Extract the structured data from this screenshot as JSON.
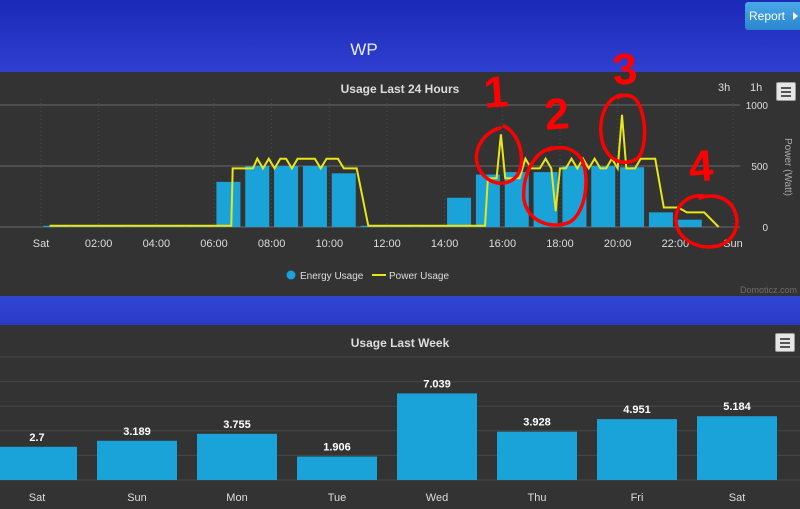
{
  "header": {
    "title": "WP",
    "report_label": "Report"
  },
  "chart_data": [
    {
      "type": "bar",
      "title": "Usage Last 24 Hours",
      "ylabel": "Power (Watt)",
      "ylim": [
        0,
        1000
      ],
      "y_ticks": [
        "0",
        "500",
        "1000"
      ],
      "x_ticks": [
        "Sat",
        "02:00",
        "04:00",
        "06:00",
        "08:00",
        "10:00",
        "12:00",
        "14:00",
        "16:00",
        "18:00",
        "20:00",
        "22:00",
        "Sun"
      ],
      "x_range_hours": [
        0,
        24
      ],
      "zoom_buttons": [
        "3h",
        "1h"
      ],
      "credit": "Domoticz.com",
      "legend_position": "bottom",
      "grid": true,
      "series": [
        {
          "name": "Energy Usage",
          "type": "bar",
          "color": "#1aa3d9",
          "points": [
            {
              "hour": 0.5,
              "value": 10
            },
            {
              "hour": 1.5,
              "value": 10
            },
            {
              "hour": 2.5,
              "value": 10
            },
            {
              "hour": 3.5,
              "value": 10
            },
            {
              "hour": 4.5,
              "value": 10
            },
            {
              "hour": 5.5,
              "value": 10
            },
            {
              "hour": 6.5,
              "value": 370
            },
            {
              "hour": 7.5,
              "value": 500
            },
            {
              "hour": 8.5,
              "value": 500
            },
            {
              "hour": 9.5,
              "value": 500
            },
            {
              "hour": 10.5,
              "value": 440
            },
            {
              "hour": 11.5,
              "value": 10
            },
            {
              "hour": 12.5,
              "value": 10
            },
            {
              "hour": 13.5,
              "value": 10
            },
            {
              "hour": 14.5,
              "value": 240
            },
            {
              "hour": 15.5,
              "value": 430
            },
            {
              "hour": 16.5,
              "value": 450
            },
            {
              "hour": 17.5,
              "value": 450
            },
            {
              "hour": 18.5,
              "value": 500
            },
            {
              "hour": 19.5,
              "value": 500
            },
            {
              "hour": 20.5,
              "value": 490
            },
            {
              "hour": 21.5,
              "value": 120
            },
            {
              "hour": 22.5,
              "value": 60
            }
          ]
        },
        {
          "name": "Power Usage",
          "type": "line",
          "color": "#e6e619",
          "points": [
            [
              0.3,
              10
            ],
            [
              6.6,
              10
            ],
            [
              6.65,
              480
            ],
            [
              7.35,
              480
            ],
            [
              7.5,
              560
            ],
            [
              7.7,
              480
            ],
            [
              7.9,
              560
            ],
            [
              8.1,
              480
            ],
            [
              8.3,
              560
            ],
            [
              8.5,
              560
            ],
            [
              8.7,
              480
            ],
            [
              8.9,
              560
            ],
            [
              9.1,
              560
            ],
            [
              9.3,
              560
            ],
            [
              9.5,
              560
            ],
            [
              9.7,
              480
            ],
            [
              9.9,
              560
            ],
            [
              10.1,
              560
            ],
            [
              10.3,
              560
            ],
            [
              10.5,
              480
            ],
            [
              10.7,
              480
            ],
            [
              10.95,
              480
            ],
            [
              11.35,
              10
            ],
            [
              15.4,
              10
            ],
            [
              15.5,
              400
            ],
            [
              15.8,
              400
            ],
            [
              15.95,
              760
            ],
            [
              16.1,
              400
            ],
            [
              16.6,
              400
            ],
            [
              16.8,
              560
            ],
            [
              17.0,
              480
            ],
            [
              17.3,
              480
            ],
            [
              17.5,
              560
            ],
            [
              17.7,
              480
            ],
            [
              17.85,
              130
            ],
            [
              18.0,
              480
            ],
            [
              18.2,
              480
            ],
            [
              18.4,
              560
            ],
            [
              18.6,
              480
            ],
            [
              18.8,
              560
            ],
            [
              19.0,
              480
            ],
            [
              19.2,
              560
            ],
            [
              19.4,
              480
            ],
            [
              19.6,
              480
            ],
            [
              19.8,
              560
            ],
            [
              20.0,
              480
            ],
            [
              20.15,
              920
            ],
            [
              20.3,
              480
            ],
            [
              20.6,
              480
            ],
            [
              20.8,
              560
            ],
            [
              21.0,
              560
            ],
            [
              21.3,
              560
            ],
            [
              21.6,
              160
            ],
            [
              22.1,
              160
            ],
            [
              22.4,
              120
            ],
            [
              23.0,
              120
            ],
            [
              23.5,
              0
            ]
          ]
        }
      ]
    },
    {
      "type": "bar",
      "title": "Usage Last Week",
      "categories": [
        "Sat",
        "Sun",
        "Mon",
        "Tue",
        "Wed",
        "Thu",
        "Fri",
        "Sat"
      ],
      "values": [
        2.7,
        3.189,
        3.755,
        1.906,
        7.039,
        3.928,
        4.951,
        5.184
      ],
      "value_labels": [
        "2.7",
        "3.189",
        "3.755",
        "1.906",
        "7.039",
        "3.928",
        "4.951",
        "5.184"
      ],
      "ylim": [
        0,
        10
      ],
      "color": "#1aa3d9",
      "grid": true
    }
  ],
  "annotations": {
    "color": "#ff0000",
    "labels": [
      "1",
      "2",
      "3",
      "4"
    ]
  }
}
